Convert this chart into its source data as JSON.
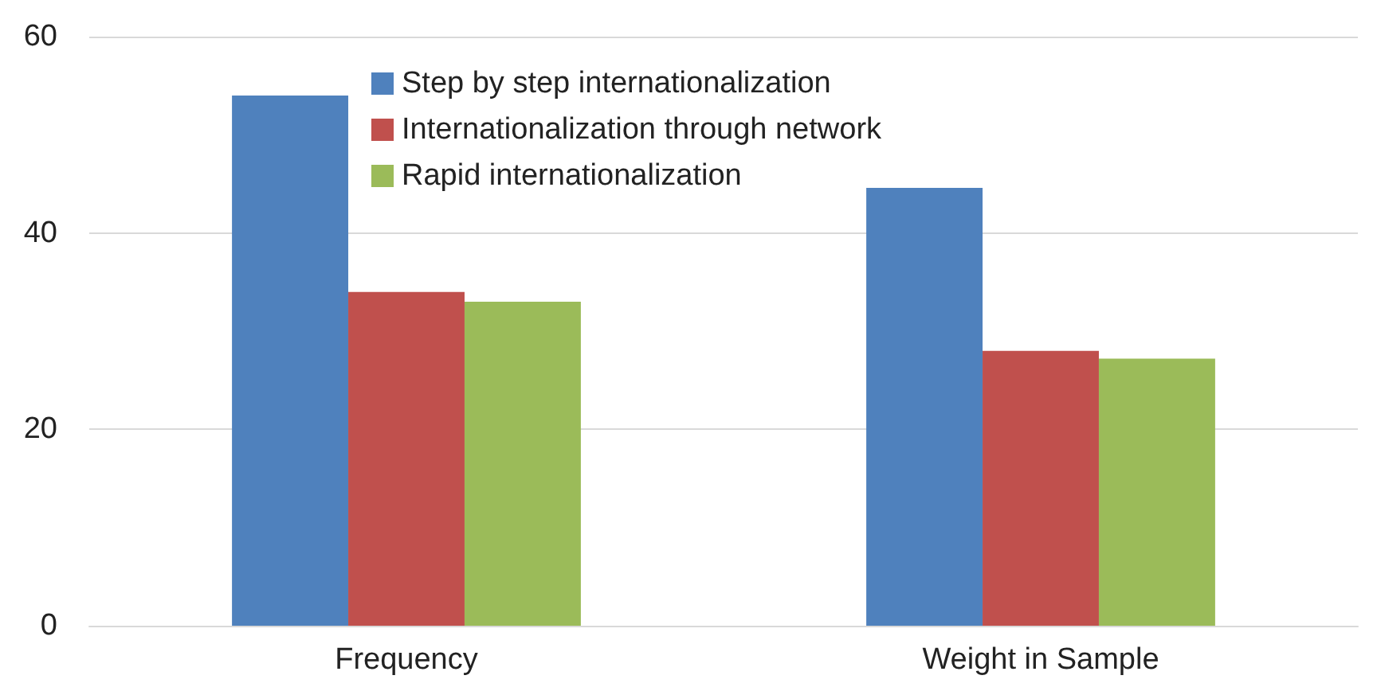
{
  "chart_data": {
    "type": "bar",
    "categories": [
      "Frequency",
      "Weight in Sample"
    ],
    "series": [
      {
        "name": "Step by step internationalization",
        "color": "#4f81bd",
        "values": [
          54,
          44.6
        ]
      },
      {
        "name": "Internationalization through network",
        "color": "#c0504d",
        "values": [
          34,
          28
        ]
      },
      {
        "name": "Rapid internationalization",
        "color": "#9bbb59",
        "values": [
          33,
          27.2
        ]
      }
    ],
    "ylim": [
      0,
      60
    ],
    "yticks": [
      0,
      20,
      40,
      60
    ],
    "grid": "y",
    "legend": "top"
  }
}
